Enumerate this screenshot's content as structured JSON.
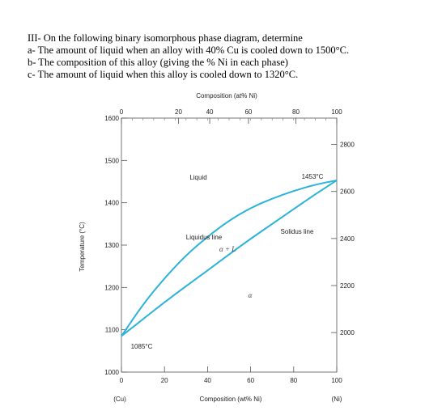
{
  "question": {
    "heading": "III- On the following binary isomorphous phase diagram, determine",
    "items": [
      "a-  The amount of liquid when an alloy with 40% Cu is cooled down to 1500°C.",
      "b-  The composition of this alloy (giving the % Ni in each phase)",
      "c-  The amount of liquid when this alloy is cooled down to 1320°C."
    ]
  },
  "chart_data": {
    "type": "line",
    "title_top": "Composition (at% Ni)",
    "xlabel": "Composition (wt% Ni)",
    "ylabel_left": "Temperature (°C)",
    "xlim": [
      0,
      100
    ],
    "ylim": [
      1000,
      1600
    ],
    "ylim_right_F": [
      1832,
      2912
    ],
    "x_ticks_bottom": [
      "0",
      "20",
      "40",
      "60",
      "80",
      "100"
    ],
    "x_ticks_top": [
      "0",
      "20",
      "40",
      "60",
      "80",
      "100"
    ],
    "y_ticks_left": [
      "1600",
      "1500",
      "1400",
      "1300",
      "1200",
      "1100",
      "1000"
    ],
    "y_ticks_right": [
      "2800",
      "2600",
      "2400",
      "2200",
      "2000"
    ],
    "x_end_labels": {
      "left": "(Cu)",
      "right": "(Ni)"
    },
    "annotations": {
      "liquid": "Liquid",
      "mp_ni": "1453°C",
      "mp_cu": "1085°C",
      "liquidus": "Liquidus line",
      "solidus": "Solidus line",
      "two_phase": "α + L",
      "alpha": "α"
    },
    "line_color": "#2bb3d9",
    "series": [
      {
        "name": "Liquidus line",
        "x": [
          0,
          10,
          20,
          30,
          40,
          50,
          60,
          70,
          80,
          90,
          100
        ],
        "y": [
          1085,
          1160,
          1222,
          1276,
          1320,
          1358,
          1388,
          1410,
          1428,
          1443,
          1453
        ]
      },
      {
        "name": "Solidus line",
        "x": [
          0,
          10,
          20,
          30,
          40,
          50,
          60,
          70,
          80,
          90,
          100
        ],
        "y": [
          1085,
          1125,
          1165,
          1203,
          1240,
          1278,
          1315,
          1350,
          1385,
          1420,
          1453
        ]
      }
    ]
  }
}
